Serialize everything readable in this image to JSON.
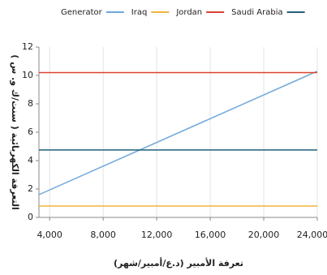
{
  "chart_data": {
    "type": "line",
    "x_label": "تعرفة الأمبير (د.ع/أمبير/شهر)",
    "y_label": "التعرفة الكهربائية ( سنت/ك و. س )",
    "x": [
      3200,
      24000
    ],
    "series": [
      {
        "name": "Generator",
        "color": "#6fa8dc",
        "values": [
          1.6,
          10.3
        ]
      },
      {
        "name": "Iraq",
        "color": "#f0b43c",
        "values": [
          0.8,
          0.8
        ]
      },
      {
        "name": "Jordan",
        "color": "#d9432f",
        "values": [
          10.2,
          10.2
        ]
      },
      {
        "name": "Saudi Arabia",
        "color": "#1f5f7a",
        "values": [
          4.75,
          4.75
        ]
      }
    ],
    "xlim": [
      3200,
      24000
    ],
    "xticks": [
      {
        "value": 4000,
        "label": "4,000"
      },
      {
        "value": 8000,
        "label": "8,000"
      },
      {
        "value": 12000,
        "label": "12,000"
      },
      {
        "value": 16000,
        "label": "16,000"
      },
      {
        "value": 20000,
        "label": "20,000"
      },
      {
        "value": 24000,
        "label": "24,000"
      }
    ],
    "ylim": [
      0,
      12
    ],
    "yticks": [
      0,
      2,
      4,
      6,
      8,
      10,
      12
    ],
    "grid": "x",
    "legend": "top"
  }
}
